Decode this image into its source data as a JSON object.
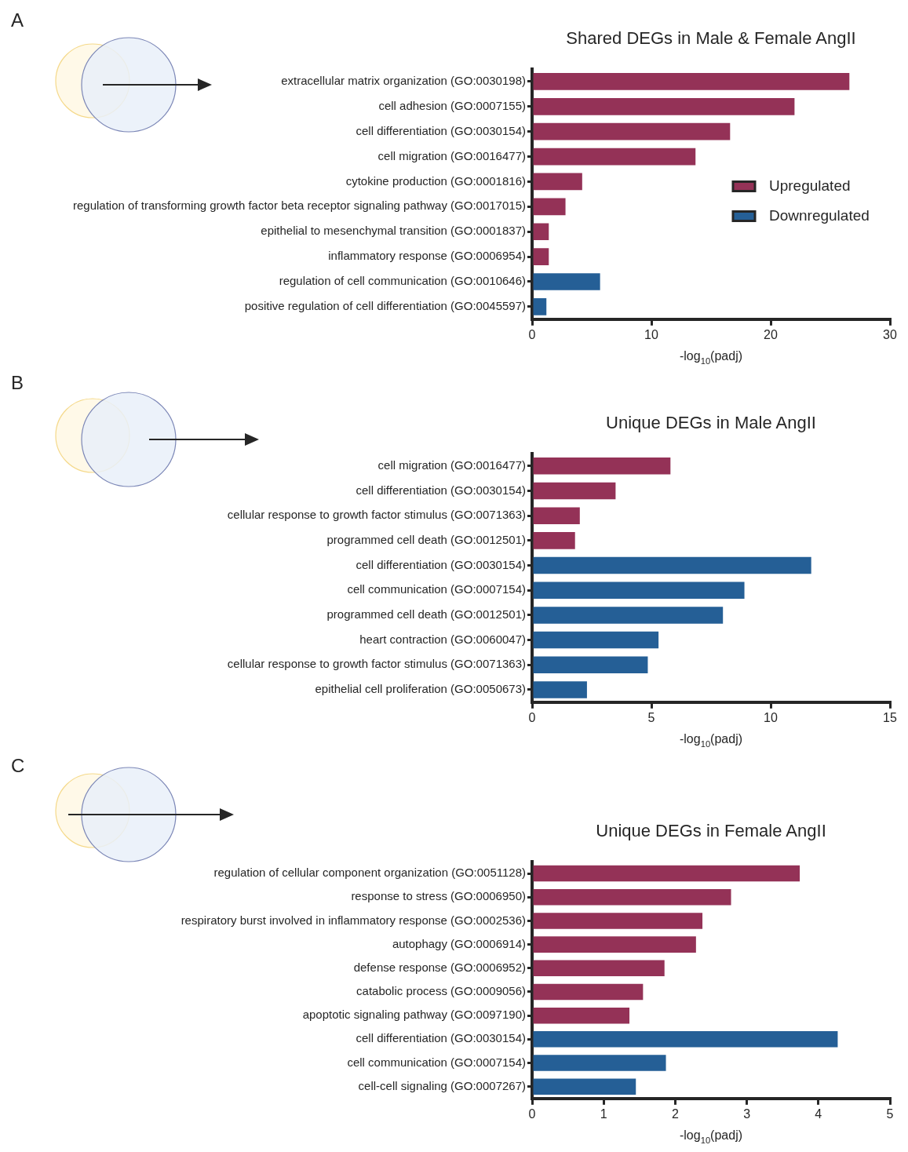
{
  "chart_data": [
    {
      "type": "bar",
      "orientation": "horizontal",
      "title": "Shared DEGs in Male & Female AngII",
      "xlabel": "-log$_{10}$(padj)",
      "annotations": [
        "A"
      ],
      "legend": "right",
      "categories": [
        "extracellular matrix organization (GO:0030198)",
        "cell adhesion (GO:0007155)",
        "cell differentiation (GO:0030154)",
        "cell migration (GO:0016477)",
        "cytokine production (GO:0001816)",
        "regulation of transforming growth factor beta receptor signaling pathway (GO:0017015)",
        "epithelial to mesenchymal transition (GO:0001837)",
        "inflammatory response (GO:0006954)",
        "regulation of cell communication (GO:0010646)",
        "positive regulation of cell differentiation (GO:0045597)"
      ],
      "series": [
        {
          "name": "Upregulated",
          "color": "#943257",
          "values": [
            26.6,
            22.0,
            16.6,
            13.7,
            4.2,
            2.8,
            1.4,
            1.4,
            null,
            null
          ]
        },
        {
          "name": "Downregulated",
          "color": "#255f96",
          "values": [
            null,
            null,
            null,
            null,
            null,
            null,
            null,
            null,
            5.7,
            1.2
          ]
        }
      ],
      "xlim": [
        0,
        30
      ],
      "xticks": [
        0,
        10,
        20,
        30
      ]
    },
    {
      "type": "bar",
      "orientation": "horizontal",
      "title": "Unique DEGs in Male AngII",
      "xlabel": "-log$_{10}$(padj)",
      "annotations": [
        "B"
      ],
      "categories": [
        "cell migration (GO:0016477)",
        "cell differentiation (GO:0030154)",
        "cellular response to growth factor stimulus (GO:0071363)",
        "programmed cell death (GO:0012501)",
        "cell differentiation (GO:0030154)",
        "cell communication (GO:0007154)",
        "programmed cell death (GO:0012501)",
        "heart contraction (GO:0060047)",
        "cellular response to growth factor stimulus (GO:0071363)",
        "epithelial cell proliferation (GO:0050673)"
      ],
      "series": [
        {
          "color": "#943257",
          "values": [
            5.8,
            3.5,
            2.0,
            1.8,
            null,
            null,
            null,
            null,
            null,
            null
          ]
        },
        {
          "color": "#255f96",
          "values": [
            null,
            null,
            null,
            null,
            11.7,
            8.9,
            8.0,
            5.3,
            4.85,
            2.3
          ]
        }
      ],
      "xlim": [
        0,
        15
      ],
      "xticks": [
        0,
        5,
        10,
        15
      ]
    },
    {
      "type": "bar",
      "orientation": "horizontal",
      "title": "Unique DEGs in Female AngII",
      "xlabel": "-log$_{10}$(padj)",
      "annotations": [
        "C"
      ],
      "categories": [
        "regulation of cellular component organization (GO:0051128)",
        "response to stress (GO:0006950)",
        "respiratory burst involved in inflammatory response (GO:0002536)",
        "autophagy (GO:0006914)",
        "defense response (GO:0006952)",
        "catabolic process (GO:0009056)",
        "apoptotic signaling pathway (GO:0097190)",
        "cell differentiation (GO:0030154)",
        "cell communication (GO:0007154)",
        "cell-cell signaling (GO:0007267)"
      ],
      "series": [
        {
          "color": "#943257",
          "values": [
            3.74,
            2.78,
            2.38,
            2.29,
            1.85,
            1.55,
            1.36,
            null,
            null,
            null
          ]
        },
        {
          "color": "#255f96",
          "values": [
            null,
            null,
            null,
            null,
            null,
            null,
            null,
            4.27,
            1.87,
            1.45
          ]
        }
      ],
      "xlim": [
        0,
        5
      ],
      "xticks": [
        0,
        1,
        2,
        3,
        4,
        5
      ]
    }
  ]
}
